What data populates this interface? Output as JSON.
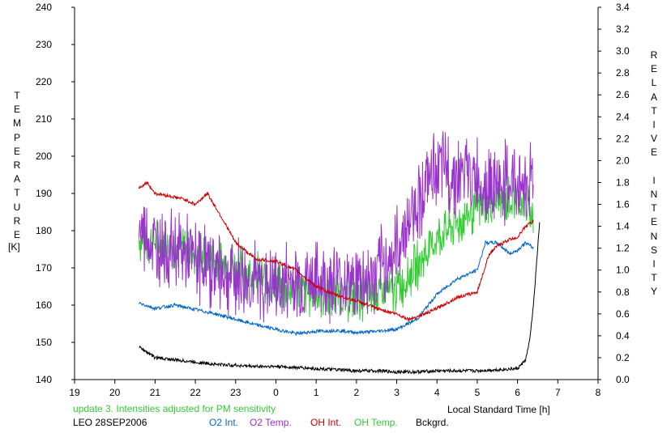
{
  "chart_data": {
    "type": "line",
    "title": "",
    "xlabel": "Local Standard Time [h]",
    "ylabel_left": "TEMPERATURE",
    "ylabel_left_unit": "[K]",
    "ylabel_right": "RELATIVE INTENSITY",
    "x_ticks": [
      "19",
      "20",
      "21",
      "22",
      "23",
      "0",
      "1",
      "2",
      "3",
      "4",
      "5",
      "6",
      "7",
      "8"
    ],
    "x_tick_values": [
      19,
      20,
      21,
      22,
      23,
      24,
      25,
      26,
      27,
      28,
      29,
      30,
      31,
      32
    ],
    "xlim": [
      19,
      32
    ],
    "ylim_left": [
      140,
      240
    ],
    "y_ticks_left": [
      140,
      150,
      160,
      170,
      180,
      190,
      200,
      210,
      220,
      230,
      240
    ],
    "ylim_right": [
      0.0,
      3.4
    ],
    "y_ticks_right": [
      "0.0",
      "0.2",
      "0.4",
      "0.6",
      "0.8",
      "1.0",
      "1.2",
      "1.4",
      "1.6",
      "1.8",
      "2.0",
      "2.2",
      "2.4",
      "2.6",
      "2.8",
      "3.0",
      "3.2",
      "3.4"
    ],
    "grid": false,
    "series": [
      {
        "name": "O2 Int.",
        "axis": "right",
        "color": "#0066cc",
        "x": [
          20.6,
          21,
          21.5,
          22,
          22.5,
          23,
          23.5,
          24,
          24.5,
          25,
          25.5,
          26,
          26.5,
          27,
          27.5,
          28,
          28.5,
          29,
          29.2,
          29.5,
          29.8,
          30,
          30.2,
          30.4
        ],
        "y": [
          0.7,
          0.65,
          0.68,
          0.64,
          0.6,
          0.55,
          0.5,
          0.46,
          0.42,
          0.44,
          0.45,
          0.43,
          0.44,
          0.46,
          0.55,
          0.78,
          0.92,
          1.0,
          1.25,
          1.25,
          1.15,
          1.18,
          1.25,
          1.2
        ]
      },
      {
        "name": "O2 Temp.",
        "axis": "left",
        "color": "#9933cc",
        "x": [
          20.6,
          21,
          21.5,
          22,
          22.5,
          23,
          23.5,
          24,
          24.5,
          25,
          25.5,
          26,
          26.5,
          27,
          27.5,
          28,
          28.5,
          29,
          29.5,
          30,
          30.2,
          30.4
        ],
        "y": [
          181,
          176,
          175,
          172,
          170,
          168,
          166,
          165,
          167,
          166,
          167,
          166,
          168,
          175,
          188,
          197,
          195,
          194,
          192,
          193,
          192,
          195
        ],
        "amplitude": 10
      },
      {
        "name": "OH Int.",
        "axis": "right",
        "color": "#cc0000",
        "x": [
          20.6,
          20.8,
          21,
          21.3,
          21.7,
          22,
          22.3,
          22.7,
          23,
          23.5,
          24,
          24.5,
          25,
          25.5,
          26,
          26.5,
          27,
          27.3,
          27.7,
          28,
          28.5,
          29,
          29.3,
          29.5,
          29.8,
          30,
          30.2,
          30.4
        ],
        "y": [
          1.75,
          1.8,
          1.7,
          1.68,
          1.65,
          1.6,
          1.7,
          1.45,
          1.25,
          1.1,
          1.08,
          1.0,
          0.85,
          0.77,
          0.72,
          0.65,
          0.6,
          0.55,
          0.6,
          0.65,
          0.75,
          0.8,
          1.15,
          1.22,
          1.28,
          1.3,
          1.4,
          1.45
        ]
      },
      {
        "name": "OH Temp.",
        "axis": "left",
        "color": "#33cc33",
        "x": [
          20.6,
          21,
          21.5,
          22,
          22.5,
          23,
          23.5,
          24,
          24.5,
          25,
          25.5,
          26,
          26.5,
          27,
          27.3,
          27.6,
          28,
          28.5,
          29,
          29.5,
          30,
          30.2,
          30.4
        ],
        "y": [
          178,
          177,
          176,
          174,
          172,
          170,
          168,
          165,
          164,
          163,
          163,
          162,
          163,
          164,
          168,
          172,
          178,
          182,
          186,
          188,
          189,
          187,
          183
        ],
        "amplitude": 6
      },
      {
        "name": "Bckgrd.",
        "axis": "right",
        "color": "#000000",
        "x": [
          20.6,
          20.8,
          21,
          21.5,
          22,
          22.5,
          23,
          23.5,
          24,
          24.5,
          25,
          25.5,
          26,
          26.5,
          27,
          27.5,
          28,
          28.5,
          29,
          29.5,
          30,
          30.2,
          30.3,
          30.4,
          30.5,
          30.55
        ],
        "y": [
          0.3,
          0.25,
          0.2,
          0.18,
          0.16,
          0.14,
          0.13,
          0.12,
          0.12,
          0.11,
          0.1,
          0.09,
          0.08,
          0.08,
          0.07,
          0.07,
          0.08,
          0.08,
          0.08,
          0.09,
          0.1,
          0.18,
          0.35,
          0.7,
          1.2,
          1.45
        ]
      }
    ]
  },
  "annotations": {
    "update_note": "update 3. Intensities adjusted for PM sensitivity",
    "station": "LEO 28SEP2006"
  },
  "colors": {
    "update_note": "#33cc33"
  }
}
